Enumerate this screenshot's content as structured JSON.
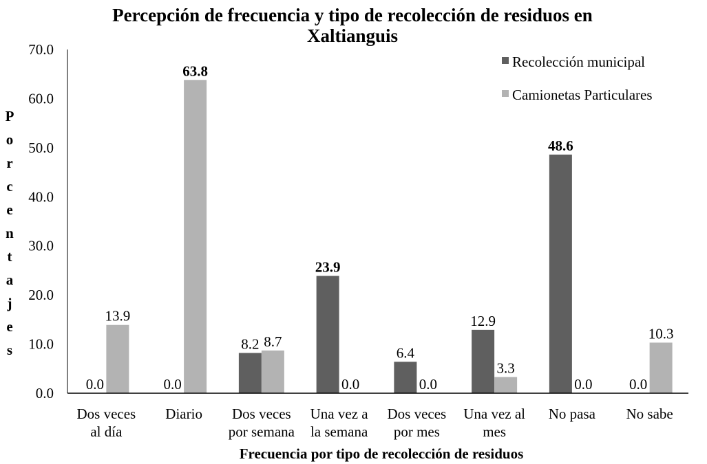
{
  "chart_data": {
    "type": "bar",
    "title_lines": [
      "Percepción de frecuencia y tipo de recolección de residuos en",
      "Xaltianguis"
    ],
    "xlabel": "Frecuencia por tipo de recolección de residuos",
    "ylabel": "Porcentajes",
    "ylim": [
      0,
      70
    ],
    "ytick_step": 10,
    "ytick_labels": [
      "0.0",
      "10.0",
      "20.0",
      "30.0",
      "40.0",
      "50.0",
      "60.0",
      "70.0"
    ],
    "categories": [
      [
        "Dos veces",
        "al día"
      ],
      [
        "Diario"
      ],
      [
        "Dos veces",
        "por semana"
      ],
      [
        "Una vez a",
        "la semana"
      ],
      [
        "Dos veces",
        "por mes"
      ],
      [
        "Una vez al",
        "mes"
      ],
      [
        "No pasa"
      ],
      [
        "No sabe"
      ]
    ],
    "series": [
      {
        "name": "Recolección municipal",
        "color": "#5f5f5f",
        "values": [
          0.0,
          0.0,
          8.2,
          23.9,
          6.4,
          12.9,
          48.6,
          0.0
        ],
        "labels": [
          "0.0",
          "0.0",
          "8.2",
          "23.9",
          "6.4",
          "12.9",
          "48.6",
          "0.0"
        ],
        "bold_labels": [
          false,
          false,
          false,
          true,
          false,
          false,
          true,
          false
        ]
      },
      {
        "name": "Camionetas Particulares",
        "color": "#b3b3b3",
        "values": [
          13.9,
          63.8,
          8.7,
          0.0,
          0.0,
          3.3,
          0.0,
          10.3
        ],
        "labels": [
          "13.9",
          "63.8",
          "8.7",
          "0.0",
          "0.0",
          "3.3",
          "0.0",
          "10.3"
        ],
        "bold_labels": [
          false,
          true,
          false,
          false,
          false,
          false,
          false,
          false
        ]
      }
    ],
    "legend_position": "top-right",
    "grid": false
  }
}
